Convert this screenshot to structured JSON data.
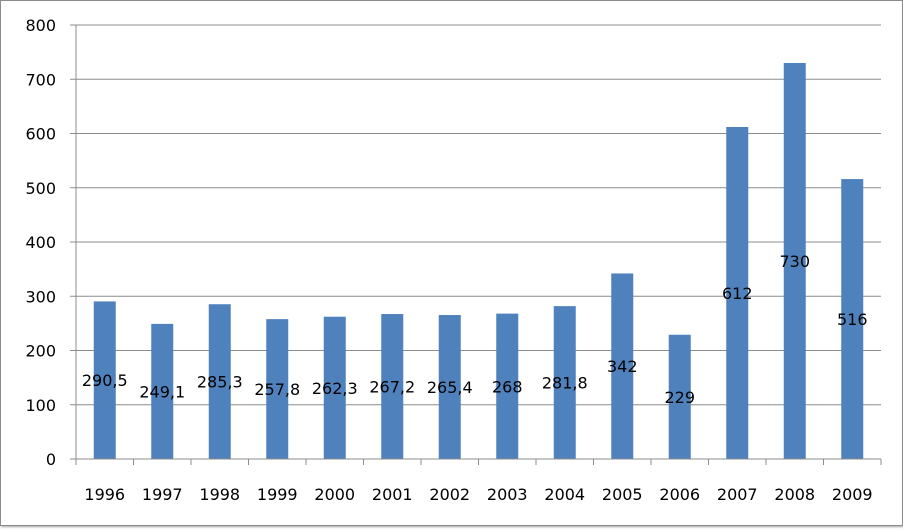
{
  "chart_data": {
    "type": "bar",
    "categories": [
      "1996",
      "1997",
      "1998",
      "1999",
      "2000",
      "2001",
      "2002",
      "2003",
      "2004",
      "2005",
      "2006",
      "2007",
      "2008",
      "2009"
    ],
    "values": [
      290.5,
      249.1,
      285.3,
      257.8,
      262.3,
      267.2,
      265.4,
      268,
      281.8,
      342,
      229,
      612,
      730,
      516
    ],
    "data_labels": [
      "290,5",
      "249,1",
      "285,3",
      "257,8",
      "262,3",
      "267,2",
      "265,4",
      "268",
      "281,8",
      "342",
      "229",
      "612",
      "730",
      "516"
    ],
    "ylim": [
      0,
      800
    ],
    "yticks": [
      0,
      100,
      200,
      300,
      400,
      500,
      600,
      700,
      800
    ],
    "grid": true,
    "legend": "none",
    "bar_color": "#4f81bd",
    "grid_color": "#8c8c8c"
  }
}
